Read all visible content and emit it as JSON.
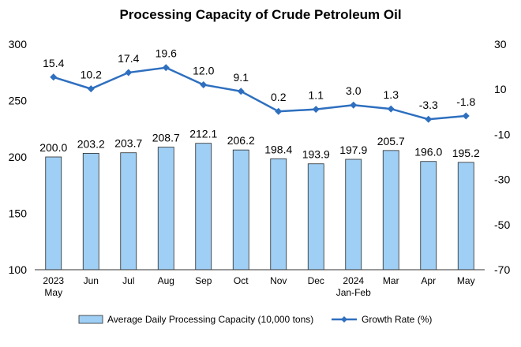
{
  "chart_data": {
    "type": "bar+line",
    "title": "Processing Capacity of Crude Petroleum Oil",
    "categories": [
      [
        "2023",
        "May"
      ],
      [
        "Jun"
      ],
      [
        "Jul"
      ],
      [
        "Aug"
      ],
      [
        "Sep"
      ],
      [
        "Oct"
      ],
      [
        "Nov"
      ],
      [
        "Dec"
      ],
      [
        "2024",
        "Jan-Feb"
      ],
      [
        "Mar"
      ],
      [
        "Apr"
      ],
      [
        "May"
      ]
    ],
    "series": [
      {
        "name": "Average Daily Processing Capacity (10,000 tons)",
        "type": "bar",
        "axis": "left",
        "values": [
          200.0,
          203.2,
          203.7,
          208.7,
          212.1,
          206.2,
          198.4,
          193.9,
          197.9,
          205.7,
          196.0,
          195.2
        ],
        "labels": [
          "200.0",
          "203.2",
          "203.7",
          "208.7",
          "212.1",
          "206.2",
          "198.4",
          "193.9",
          "197.9",
          "205.7",
          "196.0",
          "195.2"
        ],
        "color": "#9fcff5"
      },
      {
        "name": "Growth Rate (%)",
        "type": "line",
        "axis": "right",
        "values": [
          15.4,
          10.2,
          17.4,
          19.6,
          12.0,
          9.1,
          0.2,
          1.1,
          3.0,
          1.3,
          -3.3,
          -1.8
        ],
        "labels": [
          "15.4",
          "10.2",
          "17.4",
          "19.6",
          "12.0",
          "9.1",
          "0.2",
          "1.1",
          "3.0",
          "1.3",
          "-3.3",
          "-1.8"
        ],
        "color": "#2e6fbf"
      }
    ],
    "left_axis": {
      "min": 100,
      "max": 300,
      "ticks": [
        100,
        150,
        200,
        250,
        300
      ]
    },
    "right_axis": {
      "min": -70,
      "max": 30,
      "ticks": [
        -70,
        -50,
        -30,
        -10,
        10,
        30
      ]
    },
    "grid": false,
    "legend_position": "bottom"
  }
}
